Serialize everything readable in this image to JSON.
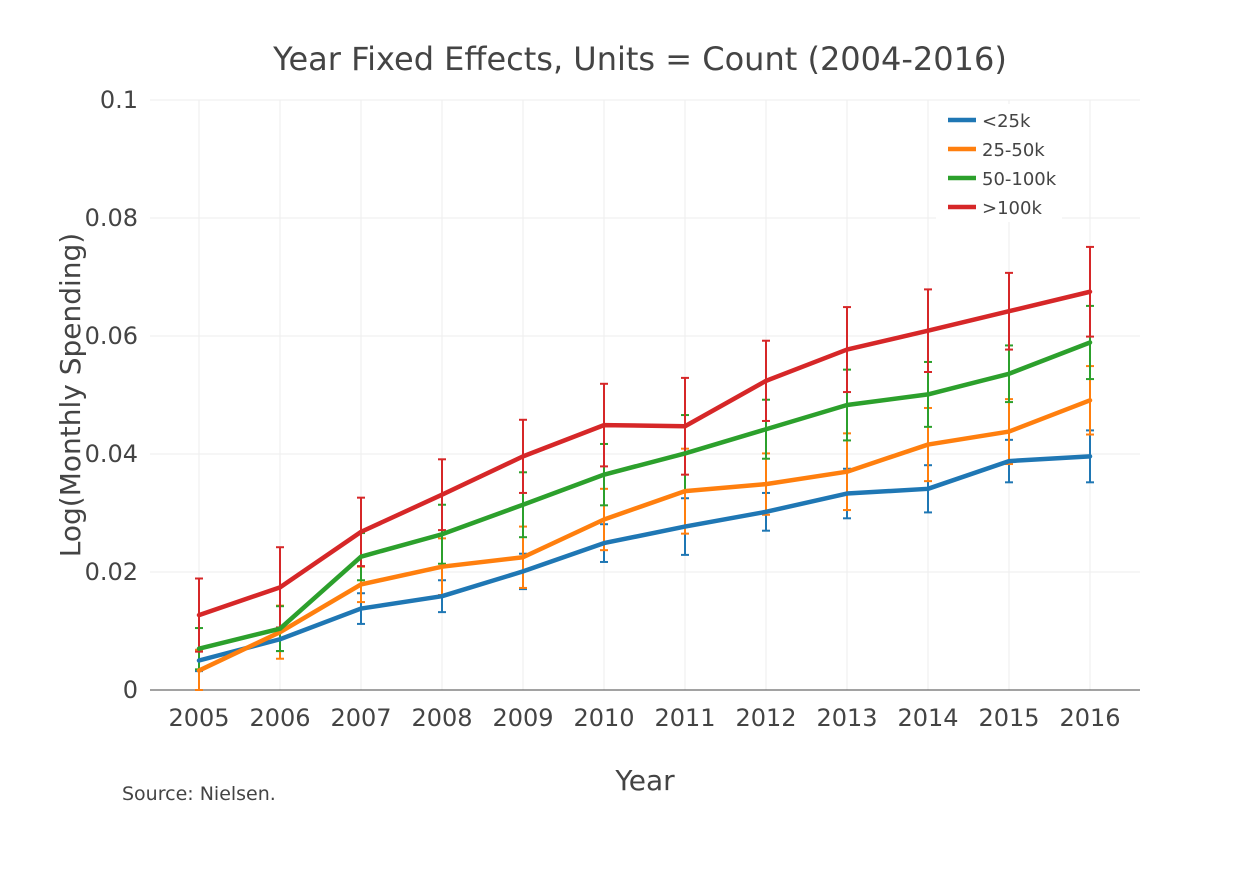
{
  "chart_data": {
    "type": "line",
    "title": "Year Fixed Effects, Units = Count (2004-2016)",
    "xlabel": "Year",
    "ylabel": "Log(Monthly Spending)",
    "source_note": "Source: Nielsen.",
    "x": [
      "2005",
      "2006",
      "2007",
      "2008",
      "2009",
      "2010",
      "2011",
      "2012",
      "2013",
      "2014",
      "2015",
      "2016"
    ],
    "ylim": [
      0,
      0.1
    ],
    "yticks": [
      0,
      0.02,
      0.04,
      0.06,
      0.08,
      0.1
    ],
    "ytick_labels": [
      "0",
      "0.02",
      "0.04",
      "0.06",
      "0.08",
      "0.1"
    ],
    "grid": true,
    "legend_position": "top-right",
    "series": [
      {
        "name": "<25k",
        "color": "#1f77b4",
        "values": [
          0.005,
          0.0086,
          0.0138,
          0.0159,
          0.0201,
          0.0249,
          0.0277,
          0.0302,
          0.0333,
          0.0341,
          0.0388,
          0.0396
        ],
        "error": [
          0.0018,
          0.002,
          0.0026,
          0.0027,
          0.003,
          0.0032,
          0.0048,
          0.0032,
          0.0042,
          0.004,
          0.0036,
          0.0044
        ]
      },
      {
        "name": "25-50k",
        "color": "#ff7f0e",
        "values": [
          0.0033,
          0.0098,
          0.0179,
          0.0209,
          0.0225,
          0.0289,
          0.0337,
          0.0349,
          0.037,
          0.0416,
          0.0438,
          0.0491
        ],
        "error": [
          0.0035,
          0.0045,
          0.003,
          0.0048,
          0.0052,
          0.0052,
          0.0072,
          0.0052,
          0.0065,
          0.0062,
          0.0055,
          0.0058
        ]
      },
      {
        "name": "50-100k",
        "color": "#2ca02c",
        "values": [
          0.007,
          0.0104,
          0.0226,
          0.0264,
          0.0314,
          0.0365,
          0.0401,
          0.0442,
          0.0483,
          0.0501,
          0.0536,
          0.0589
        ],
        "error": [
          0.0035,
          0.0038,
          0.004,
          0.005,
          0.0055,
          0.0052,
          0.0065,
          0.005,
          0.006,
          0.0055,
          0.0048,
          0.0062
        ]
      },
      {
        "name": ">100k",
        "color": "#d62728",
        "values": [
          0.0127,
          0.0174,
          0.0268,
          0.0331,
          0.0396,
          0.0449,
          0.0447,
          0.0524,
          0.0577,
          0.0609,
          0.0642,
          0.0675
        ],
        "error": [
          0.0062,
          0.0068,
          0.0058,
          0.006,
          0.0062,
          0.007,
          0.0082,
          0.0068,
          0.0072,
          0.007,
          0.0065,
          0.0076
        ]
      }
    ]
  }
}
